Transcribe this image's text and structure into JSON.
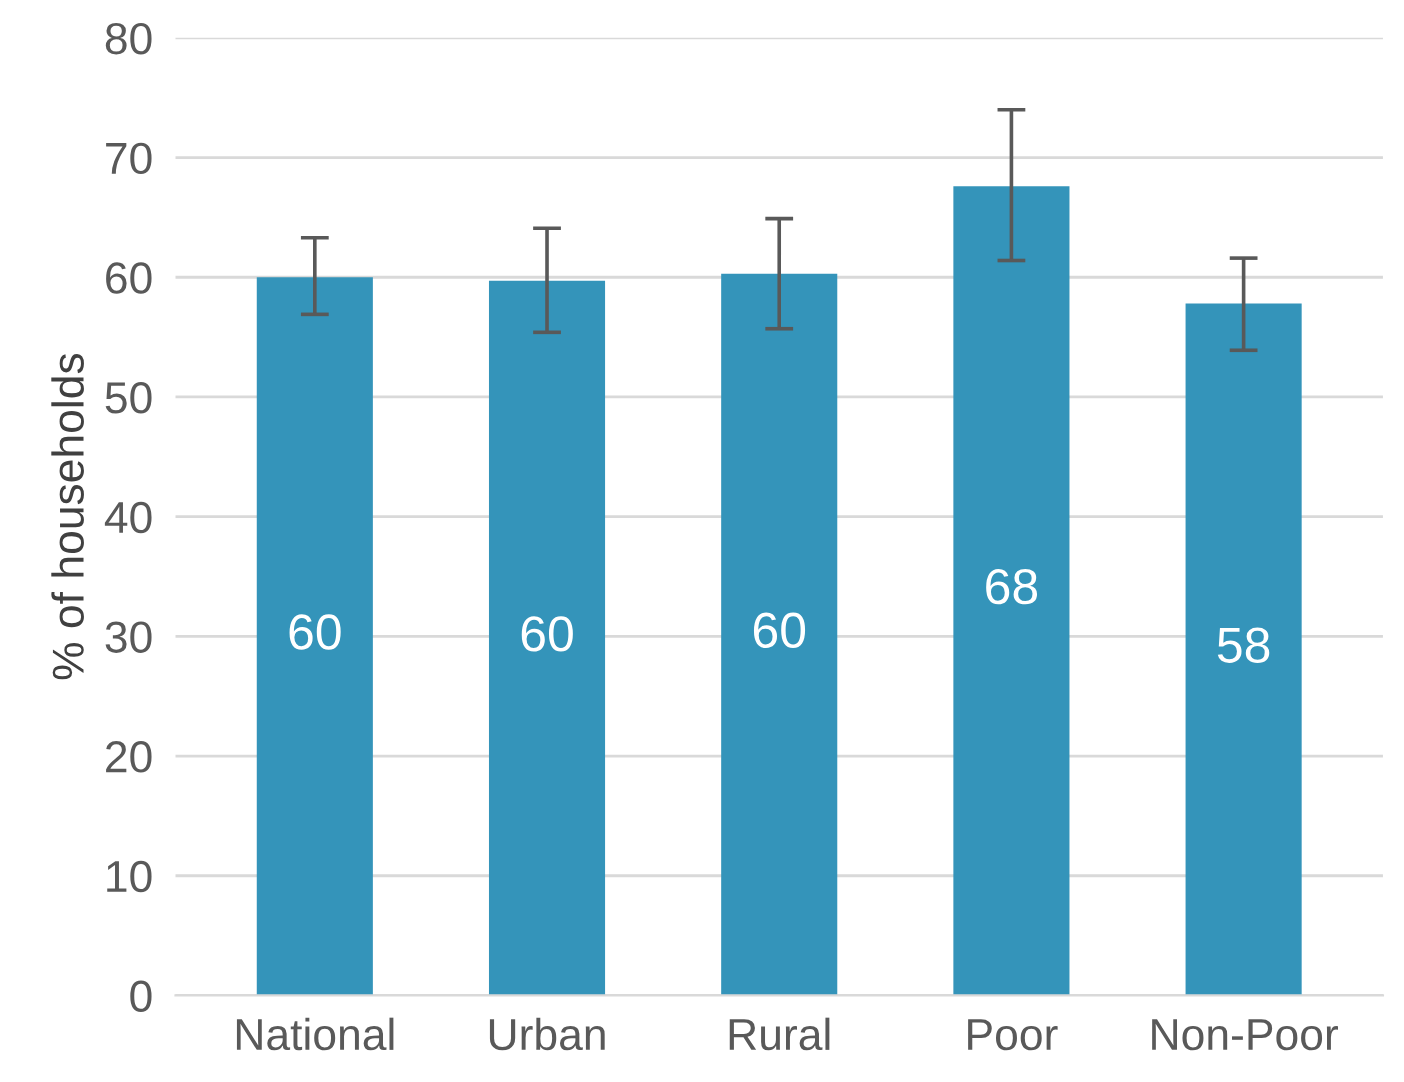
{
  "chart_data": {
    "type": "bar",
    "ylabel": "% of households",
    "categories": [
      "National",
      "Urban",
      "Rural",
      "Poor",
      "Non-Poor"
    ],
    "values": [
      60.0,
      59.7,
      60.3,
      67.6,
      57.8
    ],
    "errors": [
      [
        56.9,
        63.3
      ],
      [
        55.4,
        64.1
      ],
      [
        55.7,
        64.9
      ],
      [
        61.4,
        74.0
      ],
      [
        53.9,
        61.6
      ]
    ],
    "value_labels": [
      "60",
      "60",
      "60",
      "68",
      "58"
    ],
    "color": "#3494ba",
    "ylim": [
      0,
      80
    ],
    "yticks": [
      0,
      10,
      20,
      30,
      40,
      50,
      60,
      70,
      80
    ],
    "grid": "y"
  }
}
